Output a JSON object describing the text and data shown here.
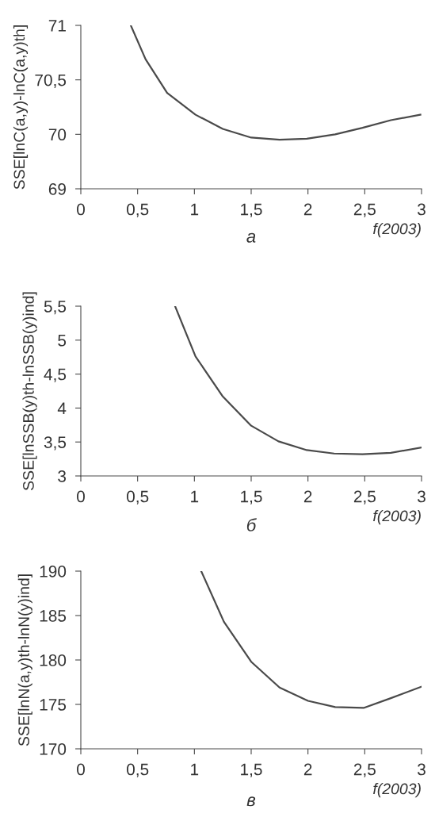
{
  "chart_data": [
    {
      "type": "line",
      "xlabel": "f(2003)",
      "ylabel": "SSE[lnC(a,y)-lnC(a,y)th]",
      "annotations": [
        "а"
      ],
      "xlim": [
        0,
        3
      ],
      "xticks": [
        0,
        {
          "value": 0.5,
          "label": "0,5"
        },
        1,
        {
          "value": 1.5,
          "label": "1,5"
        },
        2,
        {
          "value": 2.5,
          "label": "2,5"
        },
        3
      ],
      "ylim": [
        69.5,
        71
      ],
      "yticks": [
        {
          "value": 69.5,
          "label": "69"
        },
        70,
        {
          "value": 70.5,
          "label": "70,5"
        },
        71
      ],
      "grid": false,
      "series": [
        {
          "color": "#4a4a4a",
          "x": [
            0.44,
            0.57,
            0.76,
            1.01,
            1.25,
            1.5,
            1.75,
            1.99,
            2.24,
            2.48,
            2.73,
            2.99
          ],
          "values": [
            71,
            70.69,
            70.38,
            70.18,
            70.05,
            69.97,
            69.95,
            69.96,
            70.0,
            70.06,
            70.13,
            70.18
          ]
        }
      ]
    },
    {
      "type": "line",
      "xlabel": "f(2003)",
      "ylabel": "SSE[lnSSB(y)th-lnSSB(y)ind]",
      "annotations": [
        "б"
      ],
      "xlim": [
        0,
        3
      ],
      "xticks": [
        0,
        {
          "value": 0.5,
          "label": "0,5"
        },
        1,
        {
          "value": 1.5,
          "label": "1,5"
        },
        2,
        {
          "value": 2.5,
          "label": "2,5"
        },
        3
      ],
      "ylim": [
        3,
        5.5
      ],
      "yticks": [
        3,
        {
          "value": 3.5,
          "label": "3,5"
        },
        4,
        {
          "value": 4.5,
          "label": "4,5"
        },
        5,
        {
          "value": 5.5,
          "label": "5,5"
        }
      ],
      "grid": false,
      "series": [
        {
          "color": "#4a4a4a",
          "x": [
            0.83,
            1.01,
            1.25,
            1.5,
            1.74,
            1.99,
            2.23,
            2.48,
            2.73,
            3.0
          ],
          "values": [
            5.5,
            4.76,
            4.17,
            3.74,
            3.51,
            3.38,
            3.33,
            3.32,
            3.34,
            3.42
          ]
        }
      ]
    },
    {
      "type": "line",
      "xlabel": "f(2003)",
      "ylabel": "SSE[lnN(a,y)th-lnN(y)ind]",
      "annotations": [
        "в"
      ],
      "xlim": [
        0,
        3
      ],
      "xticks": [
        0,
        {
          "value": 0.5,
          "label": "0,5"
        },
        1,
        {
          "value": 1.5,
          "label": "1,5"
        },
        2,
        {
          "value": 2.5,
          "label": "2,5"
        },
        3
      ],
      "ylim": [
        170,
        190
      ],
      "yticks": [
        170,
        175,
        180,
        185,
        190
      ],
      "grid": false,
      "series": [
        {
          "color": "#4a4a4a",
          "x": [
            1.06,
            1.26,
            1.5,
            1.75,
            2.0,
            2.24,
            2.49,
            2.73,
            3.0
          ],
          "values": [
            190,
            184.3,
            179.8,
            176.9,
            175.4,
            174.7,
            174.6,
            175.7,
            177.0
          ]
        }
      ]
    }
  ]
}
